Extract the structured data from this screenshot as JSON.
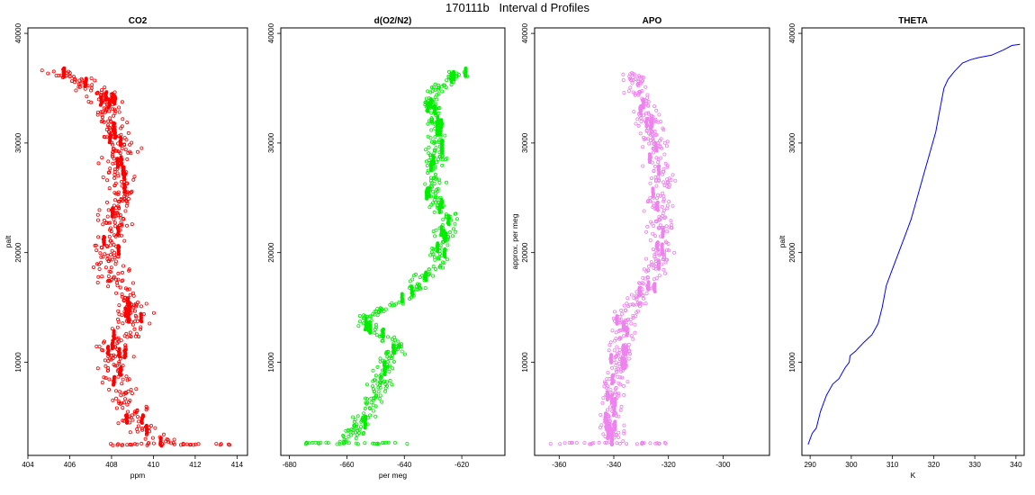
{
  "page_title": "170111b   Interval d Profiles",
  "chart_data": [
    {
      "type": "scatter",
      "title": "CO2",
      "xlabel": "ppm",
      "ylabel": "palt",
      "xlim": [
        404,
        414.5
      ],
      "ylim": [
        1500,
        40500
      ],
      "x_ticks": [
        404,
        406,
        408,
        410,
        412,
        414
      ],
      "y_ticks": [
        10000,
        20000,
        30000,
        40000
      ],
      "color": "#ff0000",
      "marker": "open-circle",
      "profile": [
        [
          2500,
          410.8
        ],
        [
          3200,
          410.0
        ],
        [
          4500,
          409.2
        ],
        [
          6000,
          408.8
        ],
        [
          8000,
          408.2
        ],
        [
          10000,
          408.0
        ],
        [
          12000,
          408.3
        ],
        [
          13500,
          408.9
        ],
        [
          15500,
          409.0
        ],
        [
          17000,
          408.2
        ],
        [
          19000,
          407.8
        ],
        [
          21000,
          407.9
        ],
        [
          23000,
          408.2
        ],
        [
          25000,
          408.4
        ],
        [
          27000,
          408.3
        ],
        [
          29500,
          408.5
        ],
        [
          31000,
          408.3
        ],
        [
          32500,
          408.0
        ],
        [
          34000,
          407.8
        ],
        [
          35000,
          407.2
        ],
        [
          36000,
          406.0
        ],
        [
          36700,
          405.0
        ]
      ],
      "spread": 0.8,
      "count": 520
    },
    {
      "type": "scatter",
      "title": "d(O2/N2)",
      "xlabel": "per meg",
      "ylabel": "",
      "xlim": [
        -683,
        -605
      ],
      "ylim": [
        1500,
        40500
      ],
      "x_ticks": [
        -680,
        -660,
        -640,
        -620
      ],
      "y_ticks": [
        10000,
        20000,
        30000,
        40000
      ],
      "color": "#00ee00",
      "marker": "open-circle",
      "profile": [
        [
          2600,
          -660
        ],
        [
          3500,
          -658
        ],
        [
          4500,
          -655
        ],
        [
          6000,
          -652
        ],
        [
          8000,
          -648
        ],
        [
          10000,
          -646
        ],
        [
          11500,
          -642
        ],
        [
          13000,
          -650
        ],
        [
          14000,
          -655
        ],
        [
          16000,
          -638
        ],
        [
          17500,
          -635
        ],
        [
          19000,
          -628
        ],
        [
          21000,
          -627
        ],
        [
          23000,
          -624
        ],
        [
          25000,
          -631
        ],
        [
          27000,
          -630
        ],
        [
          29000,
          -629
        ],
        [
          31000,
          -628
        ],
        [
          33000,
          -630
        ],
        [
          34500,
          -631
        ],
        [
          35500,
          -625
        ],
        [
          36500,
          -620
        ]
      ],
      "spread": 3.5,
      "count": 480
    },
    {
      "type": "scatter",
      "title": "APO",
      "xlabel": "",
      "ylabel": "approx. per meg",
      "xlim": [
        -369,
        -283
      ],
      "ylim": [
        1500,
        40500
      ],
      "x_ticks": [
        -360,
        -340,
        -320,
        -300
      ],
      "y_ticks": [
        10000,
        20000,
        30000,
        40000
      ],
      "color": "#ee82ee",
      "marker": "open-circle",
      "profile": [
        [
          2600,
          -340
        ],
        [
          4000,
          -342
        ],
        [
          6000,
          -340
        ],
        [
          8000,
          -339
        ],
        [
          10000,
          -338
        ],
        [
          12000,
          -337
        ],
        [
          14000,
          -336
        ],
        [
          16000,
          -330
        ],
        [
          18000,
          -324
        ],
        [
          20000,
          -323
        ],
        [
          22000,
          -323
        ],
        [
          24000,
          -324
        ],
        [
          26000,
          -322
        ],
        [
          28000,
          -324
        ],
        [
          30000,
          -325
        ],
        [
          32000,
          -327
        ],
        [
          34000,
          -330
        ],
        [
          35500,
          -332
        ],
        [
          36500,
          -332
        ]
      ],
      "spread": 5,
      "count": 500
    },
    {
      "type": "line",
      "title": "THETA",
      "xlabel": "K",
      "ylabel": "palt",
      "xlim": [
        288,
        342
      ],
      "ylim": [
        1500,
        40500
      ],
      "x_ticks": [
        290,
        300,
        310,
        320,
        330,
        340
      ],
      "y_ticks": [
        10000,
        20000,
        30000,
        40000
      ],
      "color": "#0000ff",
      "x": [
        289.5,
        290.5,
        291.5,
        292.5,
        294,
        295.5,
        297,
        298.5,
        299.5,
        299.7,
        301,
        303,
        305,
        306.5,
        307.5,
        308.5,
        310,
        311.5,
        313,
        314.5,
        316,
        317.5,
        319,
        320.5,
        321.5,
        322.5,
        323.5,
        325,
        327,
        329,
        331,
        334,
        337,
        339,
        341
      ],
      "y": [
        2500,
        3500,
        4000,
        5500,
        7000,
        8000,
        8500,
        9500,
        10000,
        10600,
        11000,
        11800,
        12500,
        13500,
        15000,
        17000,
        18500,
        20000,
        21500,
        23000,
        25000,
        27000,
        29000,
        31000,
        33000,
        35000,
        35800,
        36500,
        37300,
        37600,
        37800,
        38000,
        38500,
        38900,
        39000
      ]
    }
  ]
}
